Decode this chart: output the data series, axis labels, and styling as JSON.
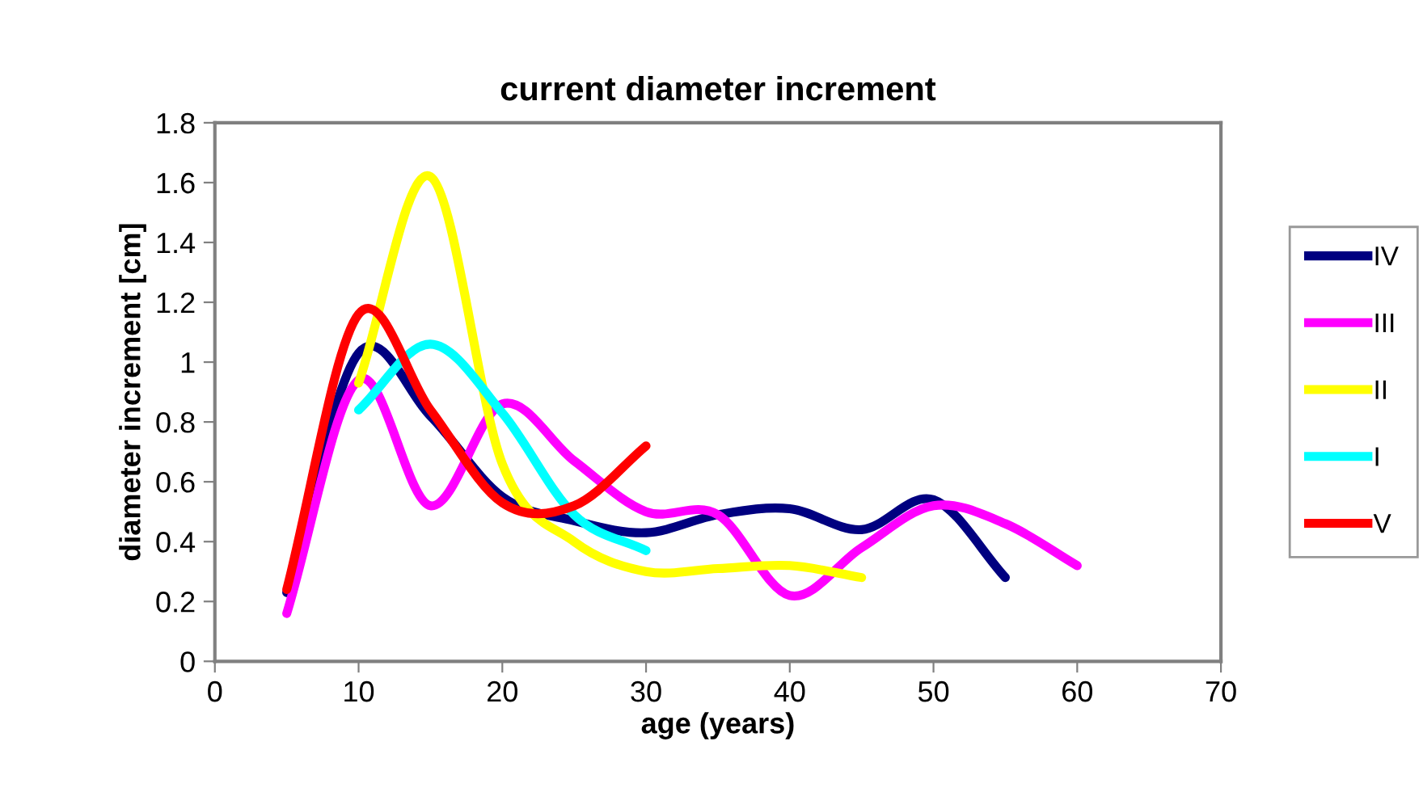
{
  "chart_data": {
    "type": "line",
    "title": "current diameter increment",
    "xlabel": "age (years)",
    "ylabel": "diameter increment [cm]",
    "xlim": [
      0,
      70
    ],
    "xticks": [
      0,
      10,
      20,
      30,
      40,
      50,
      60,
      70
    ],
    "ylim": [
      0,
      1.8
    ],
    "yticks": [
      0,
      0.2,
      0.4,
      0.6,
      0.8,
      1,
      1.2,
      1.4,
      1.6,
      1.8
    ],
    "grid": false,
    "legend": "right",
    "marker": "none",
    "line_style": "solid",
    "series": [
      {
        "name": "IV",
        "color": "#000080",
        "x": [
          5,
          10,
          15,
          20,
          25,
          30,
          35,
          40,
          45,
          50,
          55
        ],
        "values": [
          0.23,
          1.03,
          0.82,
          0.55,
          0.47,
          0.43,
          0.49,
          0.51,
          0.44,
          0.54,
          0.28
        ]
      },
      {
        "name": "III",
        "color": "#ff00ff",
        "x": [
          5,
          10,
          15,
          20,
          25,
          30,
          35,
          40,
          45,
          50,
          55,
          60
        ],
        "values": [
          0.16,
          0.94,
          0.52,
          0.86,
          0.67,
          0.5,
          0.49,
          0.22,
          0.38,
          0.52,
          0.46,
          0.32
        ]
      },
      {
        "name": "II",
        "color": "#ffff00",
        "x": [
          10,
          15,
          20,
          25,
          30,
          35,
          40,
          45
        ],
        "values": [
          0.93,
          1.62,
          0.66,
          0.4,
          0.3,
          0.31,
          0.32,
          0.28
        ]
      },
      {
        "name": "I",
        "color": "#00ffff",
        "x": [
          10,
          15,
          20,
          25,
          30
        ],
        "values": [
          0.84,
          1.06,
          0.83,
          0.49,
          0.37
        ]
      },
      {
        "name": "V",
        "color": "#ff0000",
        "x": [
          5,
          10,
          15,
          20,
          25,
          30
        ],
        "values": [
          0.24,
          1.16,
          0.84,
          0.53,
          0.52,
          0.72
        ]
      }
    ]
  }
}
